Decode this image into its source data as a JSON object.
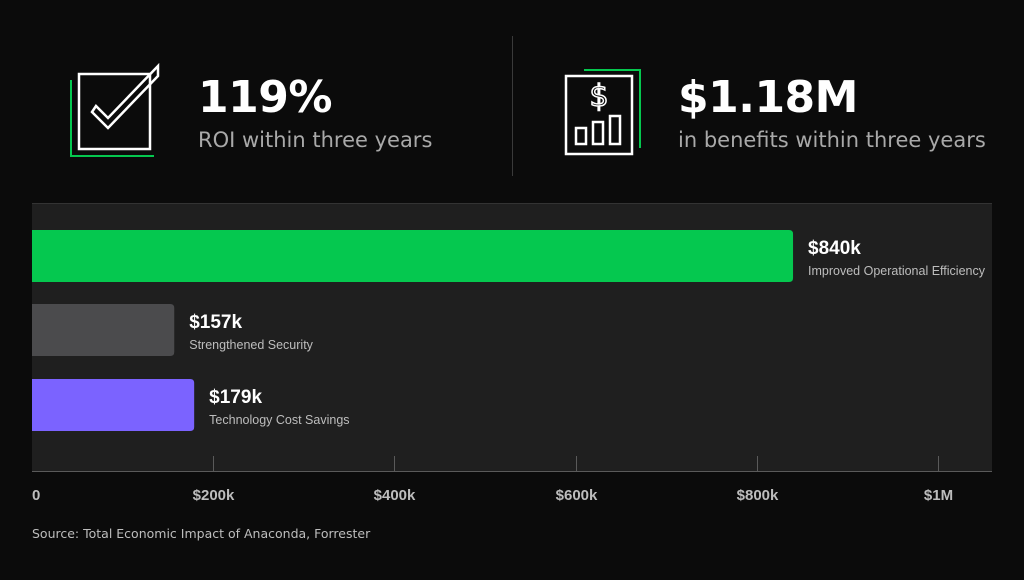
{
  "stats": [
    {
      "value": "119%",
      "caption": "ROI within three years",
      "icon": "checkbox-check-icon"
    },
    {
      "value": "$1.18M",
      "caption": "in benefits within three years",
      "icon": "dollar-bar-chart-icon"
    }
  ],
  "colors": {
    "background": "#0b0b0b",
    "panel": "#1f1f1f",
    "accent_green": "#05c84f",
    "bar_gray": "#4b4b4d",
    "bar_purple": "#7b63ff",
    "axis": "#5a5a5a",
    "label_muted": "#bdbdbd"
  },
  "chart_data": {
    "type": "bar",
    "orientation": "horizontal",
    "xlim": [
      0,
      1000000
    ],
    "x_ticks": [
      {
        "value": 0,
        "label": "0"
      },
      {
        "value": 200000,
        "label": "$200k"
      },
      {
        "value": 400000,
        "label": "$400k"
      },
      {
        "value": 600000,
        "label": "$600k"
      },
      {
        "value": 800000,
        "label": "$800k"
      },
      {
        "value": 1000000,
        "label": "$1M"
      }
    ],
    "bars": [
      {
        "category": "Improved Operational Efficiency",
        "value": 840000,
        "value_label": "$840k",
        "color": "#05c84f"
      },
      {
        "category": "Strengthened Security",
        "value": 157000,
        "value_label": "$157k",
        "color": "#4b4b4d"
      },
      {
        "category": "Technology Cost Savings",
        "value": 179000,
        "value_label": "$179k",
        "color": "#7b63ff"
      }
    ],
    "gridlines": true
  },
  "source": "Source: Total Economic Impact of Anaconda, Forrester"
}
